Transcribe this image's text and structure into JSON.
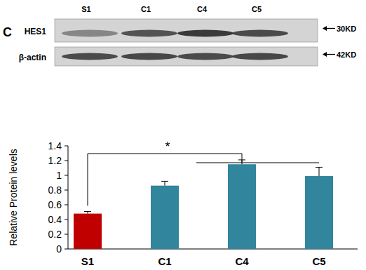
{
  "chart_data": {
    "type": "bar",
    "panel_label": "C",
    "blot": {
      "lanes": [
        "S1",
        "C1",
        "C4",
        "C5"
      ],
      "rows": [
        {
          "label": "HES1",
          "size": "30KD"
        },
        {
          "label": "β-actin",
          "size": "42KD"
        }
      ]
    },
    "categories": [
      "S1",
      "C1",
      "C4",
      "C5"
    ],
    "values": [
      0.48,
      0.86,
      1.15,
      0.99
    ],
    "errors": [
      0.03,
      0.06,
      0.06,
      0.12
    ],
    "colors": [
      "#c00000",
      "#31859c",
      "#31859c",
      "#31859c"
    ],
    "y_label": "Relative  Protein levels",
    "annotations": [
      {
        "text": "*"
      }
    ],
    "ylim": [
      0,
      1.4
    ],
    "yticks": [
      0,
      0.2,
      0.4,
      0.6,
      0.8,
      1,
      1.2,
      1.4
    ],
    "grid": false
  }
}
